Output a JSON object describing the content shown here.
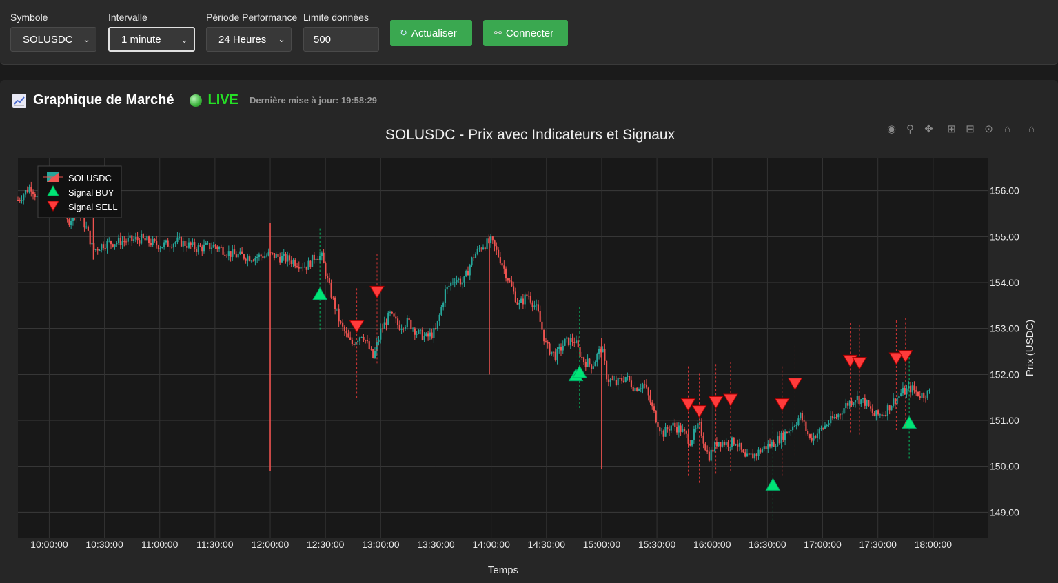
{
  "toolbar": {
    "symbol_label": "Symbole",
    "symbol_value": "SOLUSDC",
    "interval_label": "Intervalle",
    "interval_value": "1 minute",
    "period_label": "Période Performance",
    "period_value": "24 Heures",
    "limit_label": "Limite données",
    "limit_value": "500",
    "refresh_label": "Actualiser",
    "connect_label": "Connecter"
  },
  "panel": {
    "title": "Graphique de Marché",
    "live_label": "LIVE",
    "last_update": "Dernière mise à jour: 19:58:29"
  },
  "icons": {
    "chart_icon": "chart-line-icon",
    "refresh_icon": "refresh-icon",
    "plug_icon": "plug-icon",
    "live_icon": "status-dot-icon"
  },
  "colors": {
    "up": "#26a69a",
    "down": "#ef5350",
    "buy": "#00e676",
    "sell": "#ff3b3b",
    "button": "#3aa850",
    "live": "#25e025"
  },
  "chart_data": {
    "type": "candlestick",
    "title": "SOLUSDC - Prix avec Indicateurs et Signaux",
    "xlabel": "Temps",
    "ylabel": "Prix (USDC)",
    "ylim": [
      148.45,
      156.7
    ],
    "xlim": [
      "09:43",
      "18:30"
    ],
    "x_ticks": [
      "10:00:00",
      "10:30:00",
      "11:00:00",
      "11:30:00",
      "12:00:00",
      "12:30:00",
      "13:00:00",
      "13:30:00",
      "14:00:00",
      "14:30:00",
      "15:00:00",
      "15:30:00",
      "16:00:00",
      "16:30:00",
      "17:00:00",
      "17:30:00",
      "18:00:00"
    ],
    "y_ticks": [
      149.0,
      150.0,
      151.0,
      152.0,
      153.0,
      154.0,
      155.0,
      156.0
    ],
    "y_tick_labels": [
      "149.00",
      "150.00",
      "151.00",
      "152.00",
      "153.00",
      "154.00",
      "155.00",
      "156.00"
    ],
    "legend": [
      {
        "name": "SOLUSDC",
        "kind": "candle"
      },
      {
        "name": "Signal BUY",
        "kind": "buy"
      },
      {
        "name": "Signal SELL",
        "kind": "sell"
      }
    ],
    "legend_position": "top-left",
    "grid": true,
    "price_path": [
      [
        "09:43",
        155.8
      ],
      [
        "09:50",
        156.1
      ],
      [
        "09:58",
        155.5
      ],
      [
        "10:05",
        155.9
      ],
      [
        "10:10",
        155.3
      ],
      [
        "10:15",
        155.6
      ],
      [
        "10:20",
        155.2
      ],
      [
        "10:24",
        154.7
      ],
      [
        "10:30",
        154.85
      ],
      [
        "10:40",
        154.9
      ],
      [
        "10:50",
        154.95
      ],
      [
        "11:00",
        154.8
      ],
      [
        "11:10",
        154.9
      ],
      [
        "11:20",
        154.75
      ],
      [
        "11:30",
        154.8
      ],
      [
        "11:40",
        154.6
      ],
      [
        "11:50",
        154.55
      ],
      [
        "12:00",
        154.6
      ],
      [
        "12:10",
        154.5
      ],
      [
        "12:20",
        154.35
      ],
      [
        "12:25",
        154.6
      ],
      [
        "12:28",
        154.55
      ],
      [
        "12:32",
        153.9
      ],
      [
        "12:38",
        153.1
      ],
      [
        "12:44",
        152.65
      ],
      [
        "12:50",
        152.9
      ],
      [
        "12:56",
        152.35
      ],
      [
        "13:00",
        152.95
      ],
      [
        "13:05",
        153.3
      ],
      [
        "13:10",
        153.05
      ],
      [
        "13:15",
        153.15
      ],
      [
        "13:20",
        152.9
      ],
      [
        "13:25",
        152.8
      ],
      [
        "13:30",
        152.95
      ],
      [
        "13:35",
        153.8
      ],
      [
        "13:40",
        154.1
      ],
      [
        "13:45",
        154.0
      ],
      [
        "13:50",
        154.55
      ],
      [
        "13:55",
        154.8
      ],
      [
        "14:00",
        154.9
      ],
      [
        "14:05",
        154.5
      ],
      [
        "14:10",
        154.0
      ],
      [
        "14:15",
        153.5
      ],
      [
        "14:20",
        153.75
      ],
      [
        "14:25",
        153.4
      ],
      [
        "14:30",
        152.6
      ],
      [
        "14:35",
        152.4
      ],
      [
        "14:40",
        152.7
      ],
      [
        "14:45",
        152.75
      ],
      [
        "14:50",
        152.3
      ],
      [
        "14:55",
        152.2
      ],
      [
        "15:00",
        152.6
      ],
      [
        "15:03",
        151.9
      ],
      [
        "15:08",
        151.8
      ],
      [
        "15:13",
        151.95
      ],
      [
        "15:18",
        151.7
      ],
      [
        "15:23",
        151.8
      ],
      [
        "15:28",
        151.2
      ],
      [
        "15:33",
        150.7
      ],
      [
        "15:38",
        150.9
      ],
      [
        "15:43",
        150.8
      ],
      [
        "15:48",
        150.55
      ],
      [
        "15:53",
        150.9
      ],
      [
        "15:58",
        150.2
      ],
      [
        "16:03",
        150.55
      ],
      [
        "16:08",
        150.5
      ],
      [
        "16:13",
        150.55
      ],
      [
        "16:18",
        150.15
      ],
      [
        "16:23",
        150.25
      ],
      [
        "16:28",
        150.4
      ],
      [
        "16:33",
        150.5
      ],
      [
        "16:38",
        150.65
      ],
      [
        "16:43",
        150.85
      ],
      [
        "16:48",
        151.1
      ],
      [
        "16:53",
        150.6
      ],
      [
        "16:58",
        150.75
      ],
      [
        "17:03",
        150.95
      ],
      [
        "17:08",
        151.1
      ],
      [
        "17:13",
        151.35
      ],
      [
        "17:18",
        151.5
      ],
      [
        "17:23",
        151.4
      ],
      [
        "17:28",
        151.1
      ],
      [
        "17:33",
        151.15
      ],
      [
        "17:38",
        151.4
      ],
      [
        "17:43",
        151.6
      ],
      [
        "17:48",
        151.7
      ],
      [
        "17:53",
        151.55
      ],
      [
        "17:58",
        151.6
      ]
    ],
    "spikes": [
      {
        "x": "10:24",
        "low": 154.5,
        "high": 155.9
      },
      {
        "x": "12:00",
        "low": 149.9,
        "high": 155.3
      },
      {
        "x": "13:59",
        "low": 152.0,
        "high": 155.0
      },
      {
        "x": "15:00",
        "low": 149.95,
        "high": 152.8
      }
    ],
    "buy_signals": [
      {
        "x": "12:27",
        "y": 153.75
      },
      {
        "x": "14:46",
        "y": 151.98
      },
      {
        "x": "14:48",
        "y": 152.05
      },
      {
        "x": "16:33",
        "y": 149.6
      },
      {
        "x": "17:47",
        "y": 150.95
      }
    ],
    "sell_signals": [
      {
        "x": "12:47",
        "y": 153.05
      },
      {
        "x": "12:58",
        "y": 153.8
      },
      {
        "x": "15:47",
        "y": 151.35
      },
      {
        "x": "15:53",
        "y": 151.2
      },
      {
        "x": "16:02",
        "y": 151.4
      },
      {
        "x": "16:10",
        "y": 151.45
      },
      {
        "x": "16:38",
        "y": 151.35
      },
      {
        "x": "16:45",
        "y": 151.8
      },
      {
        "x": "17:15",
        "y": 152.3
      },
      {
        "x": "17:20",
        "y": 152.25
      },
      {
        "x": "17:40",
        "y": 152.35
      },
      {
        "x": "17:45",
        "y": 152.4
      }
    ]
  }
}
